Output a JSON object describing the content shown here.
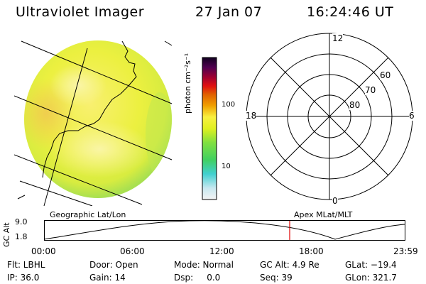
{
  "header": {
    "instrument": "Ultraviolet Imager",
    "date": "27 Jan 07",
    "time": "16:24:46 UT"
  },
  "colorbar": {
    "label": "photon cm⁻²s⁻¹",
    "ticks": [
      "100",
      "10"
    ],
    "colors": [
      "#f0f0f0",
      "#c8e8f0",
      "#40d0d0",
      "#40d060",
      "#80e040",
      "#e0f020",
      "#f8f040",
      "#f0a000",
      "#e06000",
      "#e01010",
      "#a00030",
      "#500050",
      "#100020"
    ]
  },
  "polar_plot": {
    "mlt_labels": {
      "top": "12",
      "left": "18",
      "right": "6",
      "bottom": "0"
    },
    "lat_labels": [
      "60",
      "70",
      "80"
    ]
  },
  "orbit_panel": {
    "left_title": "Geographic Lat/Lon",
    "right_title": "Apex MLat/MLT",
    "y_axis_label": "GC Alt",
    "y_ticks": [
      "9.0",
      "1.8"
    ],
    "x_ticks": [
      "00:00",
      "06:00",
      "12:00",
      "18:00",
      "23:59"
    ],
    "current_time_marker_color": "#e00000"
  },
  "status": {
    "flt": "Flt: LBHL",
    "ip": "IP: 36.0",
    "door": "Door: Open",
    "gain": "Gain: 14",
    "mode": "Mode: Normal",
    "dsp": "Dsp:     0.0",
    "gc_alt": "GC Alt: 4.9 Re",
    "seq": "Seq: 39",
    "glat": "GLat: −19.4",
    "glon": "GLon: 321.7"
  }
}
